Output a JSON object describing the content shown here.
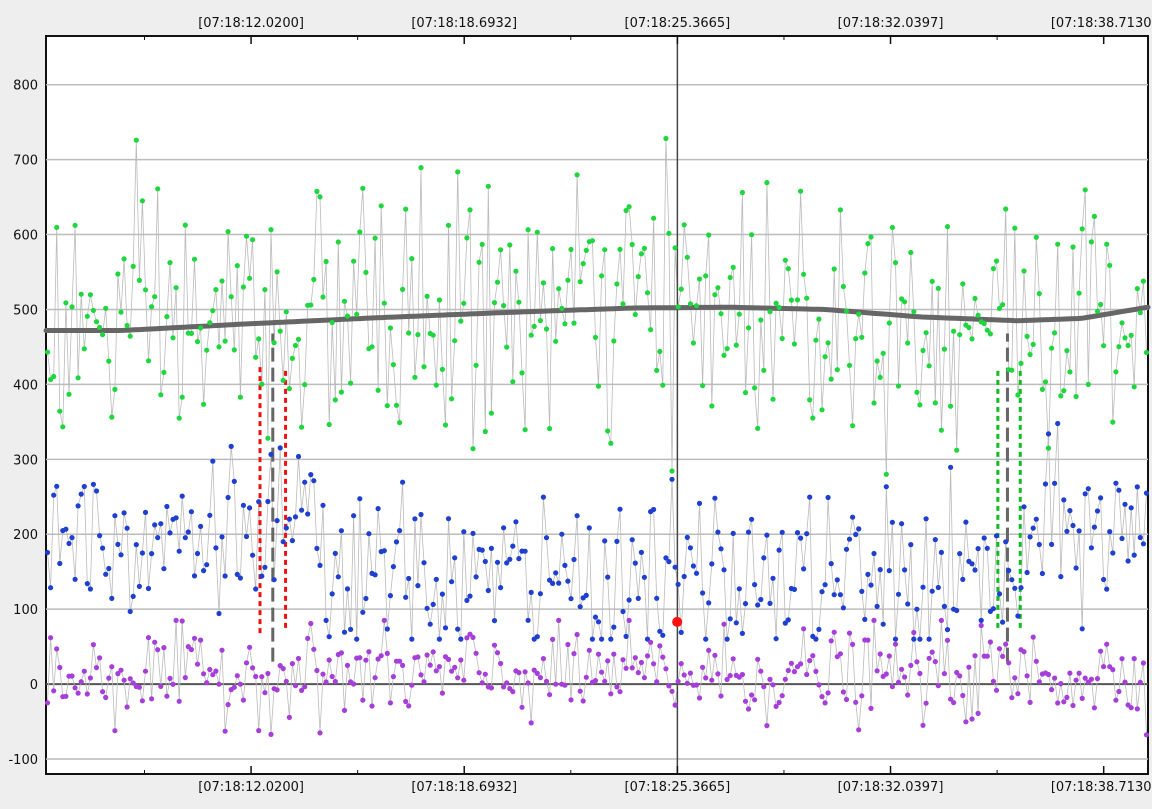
{
  "chart_data": {
    "type": "scatter",
    "title": "",
    "xlabel": "",
    "ylabel": "",
    "x_ticks": [
      "[07:18:12.0200]",
      "[07:18:18.6932]",
      "[07:18:25.3665]",
      "[07:18:32.0397]",
      "[07:18:38.7130]"
    ],
    "x_range_seconds": [
      5.6,
      40.1
    ],
    "x_tick_seconds": [
      12.02,
      18.6932,
      25.3665,
      32.0397,
      38.713
    ],
    "y_ticks": [
      800,
      700,
      600,
      500,
      400,
      300,
      200,
      100,
      0,
      -100
    ],
    "ylim": [
      -120,
      865
    ],
    "grid": true,
    "cursor_x_seconds": 25.3665,
    "series": [
      {
        "color": "#1fd63f",
        "mean_curve": [
          [
            5.6,
            472
          ],
          [
            8,
            472
          ],
          [
            12,
            481
          ],
          [
            16,
            489
          ],
          [
            20,
            496
          ],
          [
            24,
            502
          ],
          [
            27,
            503
          ],
          [
            30,
            500
          ],
          [
            33,
            490
          ],
          [
            36,
            485
          ],
          [
            38,
            488
          ],
          [
            40.1,
            503
          ]
        ]
      },
      {
        "color": "#1f3fd0"
      },
      {
        "color": "#a63fd9"
      }
    ],
    "highlight_point": {
      "x_seconds": 25.36,
      "y": 83,
      "color": "#ff1111"
    },
    "markers": [
      {
        "x_seconds": 12.3,
        "y_from": 68,
        "y_to": 423,
        "color": "#ee1111",
        "style": "dotted"
      },
      {
        "x_seconds": 12.7,
        "y_from": 30,
        "y_to": 468,
        "color": "#666666",
        "style": "dashed"
      },
      {
        "x_seconds": 13.1,
        "y_from": 75,
        "y_to": 423,
        "color": "#ee1111",
        "style": "dotted"
      },
      {
        "x_seconds": 35.4,
        "y_from": 75,
        "y_to": 423,
        "color": "#11bb22",
        "style": "dotted"
      },
      {
        "x_seconds": 35.7,
        "y_from": 30,
        "y_to": 468,
        "color": "#666666",
        "style": "dashed"
      },
      {
        "x_seconds": 36.1,
        "y_from": 75,
        "y_to": 423,
        "color": "#11bb22",
        "style": "dotted"
      }
    ],
    "series_colors": {
      "line": "#bbbbbb",
      "mean": "#666666",
      "grid": "#bcbcbc",
      "cursor": "#444444"
    }
  }
}
